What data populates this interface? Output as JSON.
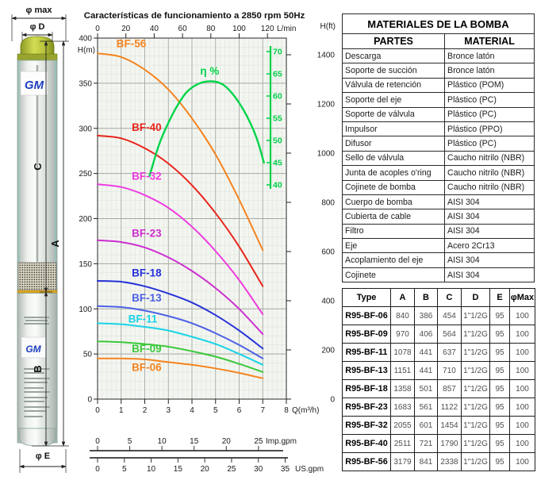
{
  "pump": {
    "brand": "GM",
    "labels": {
      "phi_max": "φ max",
      "phi_d": "φ D",
      "a": "A",
      "b": "B",
      "c": "C",
      "phi_e": "φ E"
    }
  },
  "chart_data": {
    "type": "line",
    "title": "Características de funcionamiento a 2850 rpm 50Hz",
    "axes": {
      "top": {
        "label": "L/min",
        "ticks": [
          0,
          20,
          40,
          60,
          80,
          100,
          120
        ]
      },
      "left": {
        "label": "H(m)",
        "ticks": [
          400,
          350,
          300,
          250,
          200,
          150,
          100,
          50,
          0
        ],
        "range": [
          0,
          400
        ]
      },
      "right": {
        "label": "H(ft)",
        "ticks": [
          1400,
          1200,
          1000,
          800,
          600,
          400,
          200,
          0
        ]
      },
      "bottom": {
        "label": "Q(m³/h)",
        "ticks": [
          0,
          1,
          2,
          3,
          4,
          5,
          6,
          7,
          8
        ],
        "range": [
          0,
          8
        ]
      },
      "imp_gpm": {
        "label": "Imp.gpm",
        "ticks": [
          0,
          5,
          10,
          15,
          20,
          25
        ]
      },
      "us_gpm": {
        "label": "US.gpm",
        "ticks": [
          0,
          5,
          10,
          15,
          20,
          25,
          30,
          35
        ]
      },
      "efficiency": {
        "label": "η %",
        "ticks": [
          70,
          65,
          60,
          55,
          50,
          45,
          40
        ],
        "color": "#00cf4a"
      }
    },
    "grid": "minor+major",
    "series": [
      {
        "name": "BF-56",
        "color": "#f5831f",
        "label_q": 0.8,
        "label_h": 390,
        "points": [
          [
            0,
            383
          ],
          [
            1,
            379
          ],
          [
            2,
            365
          ],
          [
            3,
            343
          ],
          [
            4,
            311
          ],
          [
            5,
            271
          ],
          [
            6,
            221
          ],
          [
            7,
            165
          ]
        ]
      },
      {
        "name": "BF-40",
        "color": "#e8251c",
        "label_q": 1.45,
        "label_h": 297,
        "points": [
          [
            0,
            292
          ],
          [
            1,
            289
          ],
          [
            2,
            278
          ],
          [
            3,
            261
          ],
          [
            4,
            237
          ],
          [
            5,
            206
          ],
          [
            6,
            169
          ],
          [
            7,
            125
          ]
        ]
      },
      {
        "name": "BF-32",
        "color": "#ee3be0",
        "label_q": 1.45,
        "label_h": 243,
        "points": [
          [
            0,
            238
          ],
          [
            1,
            235
          ],
          [
            2,
            226
          ],
          [
            3,
            212
          ],
          [
            4,
            191
          ],
          [
            5,
            164
          ],
          [
            6,
            132
          ],
          [
            7,
            94
          ]
        ]
      },
      {
        "name": "BF-23",
        "color": "#cd2ed0",
        "label_q": 1.45,
        "label_h": 180,
        "points": [
          [
            0,
            176
          ],
          [
            1,
            174
          ],
          [
            2,
            168
          ],
          [
            3,
            157
          ],
          [
            4,
            142
          ],
          [
            5,
            123
          ],
          [
            6,
            100
          ],
          [
            7,
            72
          ]
        ]
      },
      {
        "name": "BF-18",
        "color": "#2531d8",
        "label_q": 1.45,
        "label_h": 136,
        "points": [
          [
            0,
            131
          ],
          [
            1,
            130
          ],
          [
            2,
            125
          ],
          [
            3,
            117
          ],
          [
            4,
            107
          ],
          [
            5,
            93
          ],
          [
            6,
            76
          ],
          [
            7,
            56
          ]
        ]
      },
      {
        "name": "BF-13",
        "color": "#4d61e6",
        "label_q": 1.45,
        "label_h": 108,
        "points": [
          [
            0,
            103
          ],
          [
            1,
            102
          ],
          [
            2,
            98
          ],
          [
            3,
            92
          ],
          [
            4,
            84
          ],
          [
            5,
            73
          ],
          [
            6,
            60
          ],
          [
            7,
            45
          ]
        ]
      },
      {
        "name": "BF-11",
        "color": "#19d3e8",
        "label_q": 1.3,
        "label_h": 85,
        "points": [
          [
            0,
            84
          ],
          [
            1,
            83
          ],
          [
            2,
            80
          ],
          [
            3,
            76
          ],
          [
            4,
            69
          ],
          [
            5,
            61
          ],
          [
            6,
            50
          ],
          [
            7,
            38
          ]
        ]
      },
      {
        "name": "BF-09",
        "color": "#3bc83b",
        "label_q": 1.45,
        "label_h": 52,
        "points": [
          [
            0,
            64
          ],
          [
            1,
            63
          ],
          [
            2,
            61
          ],
          [
            3,
            58
          ],
          [
            4,
            53
          ],
          [
            5,
            47
          ],
          [
            6,
            39
          ],
          [
            7,
            30
          ]
        ]
      },
      {
        "name": "BF-06",
        "color": "#f5831f",
        "label_q": 1.45,
        "label_h": 31,
        "points": [
          [
            0,
            45
          ],
          [
            1,
            45
          ],
          [
            2,
            44
          ],
          [
            3,
            41
          ],
          [
            4,
            38
          ],
          [
            5,
            34
          ],
          [
            6,
            29
          ],
          [
            7,
            23
          ]
        ]
      }
    ],
    "efficiency_curve": {
      "name": "η %",
      "color": "#00d44a",
      "label_q": 4.35,
      "label_eta": 64.8,
      "points_q_eta": [
        [
          2.2,
          42
        ],
        [
          2.6,
          49
        ],
        [
          3.0,
          54
        ],
        [
          3.4,
          58
        ],
        [
          3.8,
          61
        ],
        [
          4.3,
          62.8
        ],
        [
          4.85,
          63.3
        ],
        [
          5.3,
          62.6
        ],
        [
          5.7,
          60.6
        ],
        [
          6.1,
          57.6
        ],
        [
          6.5,
          53.6
        ],
        [
          6.8,
          49.6
        ],
        [
          7.05,
          45
        ]
      ]
    }
  },
  "materials_table": {
    "title": "MATERIALES DE LA BOMBA",
    "columns": [
      "PARTES",
      "MATERIAL"
    ],
    "rows": [
      [
        "Descarga",
        "Bronce latón"
      ],
      [
        "Soporte de succión",
        "Bronce latón"
      ],
      [
        "Válvula de retención",
        "Plástico (POM)"
      ],
      [
        "Soporte del eje",
        "Plástico (PC)"
      ],
      [
        "Soporte de válvula",
        "Plástico (PC)"
      ],
      [
        "Impulsor",
        "Plástico (PPO)"
      ],
      [
        "Difusor",
        "Plástico (PC)"
      ],
      [
        "Sello de válvula",
        "Caucho nitrilo (NBR)"
      ],
      [
        "Junta de acoples o'ring",
        "Caucho nitrilo (NBR)"
      ],
      [
        "Cojinete de bomba",
        "Caucho nitrilo (NBR)"
      ],
      [
        "Cuerpo de bomba",
        "AISI 304"
      ],
      [
        "Cubierta de cable",
        "AISI 304"
      ],
      [
        "Filtro",
        "AISI 304"
      ],
      [
        "Eje",
        "Acero 2Cr13"
      ],
      [
        "Acoplamiento del eje",
        "AISI 304"
      ],
      [
        "Cojinete",
        "AISI 304"
      ]
    ]
  },
  "dimensions_table": {
    "columns": [
      "Type",
      "A",
      "B",
      "C",
      "D",
      "E",
      "φMax"
    ],
    "rows": [
      [
        "R95-BF-06",
        "840",
        "386",
        "454",
        "1\"1/2G",
        "95",
        "100"
      ],
      [
        "R95-BF-09",
        "970",
        "406",
        "564",
        "1\"1/2G",
        "95",
        "100"
      ],
      [
        "R95-BF-11",
        "1078",
        "441",
        "637",
        "1\"1/2G",
        "95",
        "100"
      ],
      [
        "R95-BF-13",
        "1151",
        "441",
        "710",
        "1\"1/2G",
        "95",
        "100"
      ],
      [
        "R95-BF-18",
        "1358",
        "501",
        "857",
        "1\"1/2G",
        "95",
        "100"
      ],
      [
        "R95-BF-23",
        "1683",
        "561",
        "1122",
        "1\"1/2G",
        "95",
        "100"
      ],
      [
        "R95-BF-32",
        "2055",
        "601",
        "1454",
        "1\"1/2G",
        "95",
        "100"
      ],
      [
        "R95-BF-40",
        "2511",
        "721",
        "1790",
        "1\"1/2G",
        "95",
        "100"
      ],
      [
        "R95-BF-56",
        "3179",
        "841",
        "2338",
        "1\"1/2G",
        "95",
        "100"
      ]
    ]
  }
}
